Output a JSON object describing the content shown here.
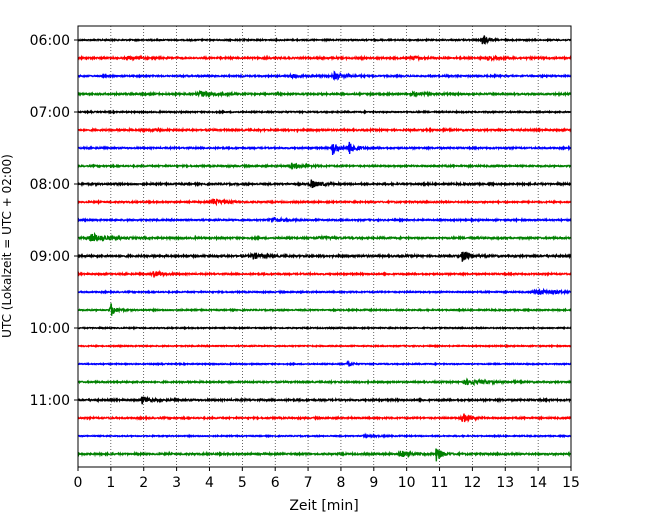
{
  "chart_data": {
    "type": "line",
    "chart_kind": "helicorder seismogram",
    "xlabel": "Zeit  [min]",
    "ylabel": "UTC (Lokalzeit = UTC + 02:00)",
    "xlim": [
      0,
      15
    ],
    "x_ticks": [
      0,
      1,
      2,
      3,
      4,
      5,
      6,
      7,
      8,
      9,
      10,
      11,
      12,
      13,
      14,
      15
    ],
    "x_tick_labels": [
      "0",
      "1",
      "2",
      "3",
      "4",
      "5",
      "6",
      "7",
      "8",
      "9",
      "10",
      "11",
      "12",
      "13",
      "14",
      "15"
    ],
    "y_tick_labels": [
      "06:00",
      "07:00",
      "08:00",
      "09:00",
      "10:00",
      "11:00"
    ],
    "x_grid": "dotted vertical at each minute",
    "trace_colors": [
      "#000000",
      "#ff0000",
      "#0000ff",
      "#008000"
    ],
    "trace_interval_minutes": 15,
    "traces": [
      {
        "start": "06:00",
        "color": "#000000",
        "noise": 0.35,
        "events": [
          {
            "t": 12.3,
            "amp": 4.5,
            "dur": 0.25
          }
        ]
      },
      {
        "start": "06:15",
        "color": "#ff0000",
        "noise": 0.45,
        "events": [
          {
            "t": 1.5,
            "amp": 1.0,
            "dur": 0.6
          },
          {
            "t": 10.2,
            "amp": 1.2,
            "dur": 0.4
          },
          {
            "t": 12.5,
            "amp": 0.9,
            "dur": 0.6
          }
        ]
      },
      {
        "start": "06:30",
        "color": "#0000ff",
        "noise": 0.4,
        "events": [
          {
            "t": 7.8,
            "amp": 2.5,
            "dur": 0.5
          },
          {
            "t": 6.5,
            "amp": 1.0,
            "dur": 0.6
          }
        ]
      },
      {
        "start": "06:45",
        "color": "#008000",
        "noise": 0.45,
        "events": [
          {
            "t": 3.7,
            "amp": 1.8,
            "dur": 0.7
          },
          {
            "t": 10.2,
            "amp": 1.0,
            "dur": 0.4
          }
        ]
      },
      {
        "start": "07:00",
        "color": "#000000",
        "noise": 0.35,
        "events": []
      },
      {
        "start": "07:15",
        "color": "#ff0000",
        "noise": 0.45,
        "events": [
          {
            "t": 2.0,
            "amp": 0.8,
            "dur": 0.6
          }
        ]
      },
      {
        "start": "07:30",
        "color": "#0000ff",
        "noise": 0.4,
        "events": [
          {
            "t": 7.75,
            "amp": 5.0,
            "dur": 0.25
          },
          {
            "t": 8.25,
            "amp": 4.0,
            "dur": 0.35
          }
        ]
      },
      {
        "start": "07:45",
        "color": "#008000",
        "noise": 0.4,
        "events": [
          {
            "t": 6.5,
            "amp": 1.6,
            "dur": 0.6
          }
        ]
      },
      {
        "start": "08:00",
        "color": "#000000",
        "noise": 0.45,
        "events": [
          {
            "t": 7.1,
            "amp": 2.4,
            "dur": 0.5
          }
        ]
      },
      {
        "start": "08:15",
        "color": "#ff0000",
        "noise": 0.4,
        "events": [
          {
            "t": 4.1,
            "amp": 1.8,
            "dur": 0.6
          }
        ]
      },
      {
        "start": "08:30",
        "color": "#0000ff",
        "noise": 0.4,
        "events": [
          {
            "t": 5.9,
            "amp": 1.5,
            "dur": 0.6
          }
        ]
      },
      {
        "start": "08:45",
        "color": "#008000",
        "noise": 0.45,
        "events": [
          {
            "t": 0.4,
            "amp": 2.8,
            "dur": 0.8
          },
          {
            "t": 7.3,
            "amp": 1.0,
            "dur": 0.5
          }
        ]
      },
      {
        "start": "09:00",
        "color": "#000000",
        "noise": 0.5,
        "events": [
          {
            "t": 5.3,
            "amp": 2.0,
            "dur": 0.5
          },
          {
            "t": 11.7,
            "amp": 4.5,
            "dur": 0.25
          }
        ]
      },
      {
        "start": "09:15",
        "color": "#ff0000",
        "noise": 0.4,
        "events": [
          {
            "t": 2.3,
            "amp": 2.0,
            "dur": 0.4
          }
        ]
      },
      {
        "start": "09:30",
        "color": "#0000ff",
        "noise": 0.35,
        "events": [
          {
            "t": 14.0,
            "amp": 1.6,
            "dur": 1.0
          }
        ]
      },
      {
        "start": "09:45",
        "color": "#008000",
        "noise": 0.35,
        "events": [
          {
            "t": 1.0,
            "amp": 4.5,
            "dur": 0.25
          }
        ]
      },
      {
        "start": "10:00",
        "color": "#000000",
        "noise": 0.3,
        "events": []
      },
      {
        "start": "10:15",
        "color": "#ff0000",
        "noise": 0.3,
        "events": []
      },
      {
        "start": "10:30",
        "color": "#0000ff",
        "noise": 0.3,
        "events": [
          {
            "t": 8.2,
            "amp": 3.5,
            "dur": 0.15
          }
        ]
      },
      {
        "start": "10:45",
        "color": "#008000",
        "noise": 0.4,
        "events": [
          {
            "t": 11.8,
            "amp": 1.5,
            "dur": 1.0
          }
        ]
      },
      {
        "start": "11:00",
        "color": "#000000",
        "noise": 0.45,
        "events": [
          {
            "t": 1.95,
            "amp": 2.5,
            "dur": 0.4
          }
        ]
      },
      {
        "start": "11:15",
        "color": "#ff0000",
        "noise": 0.4,
        "events": [
          {
            "t": 11.7,
            "amp": 3.0,
            "dur": 0.4
          }
        ]
      },
      {
        "start": "11:30",
        "color": "#0000ff",
        "noise": 0.3,
        "events": [
          {
            "t": 8.7,
            "amp": 0.8,
            "dur": 0.6
          }
        ]
      },
      {
        "start": "11:45",
        "color": "#008000",
        "noise": 0.45,
        "events": [
          {
            "t": 9.8,
            "amp": 2.2,
            "dur": 0.5
          },
          {
            "t": 10.9,
            "amp": 4.5,
            "dur": 0.3
          }
        ]
      }
    ]
  }
}
